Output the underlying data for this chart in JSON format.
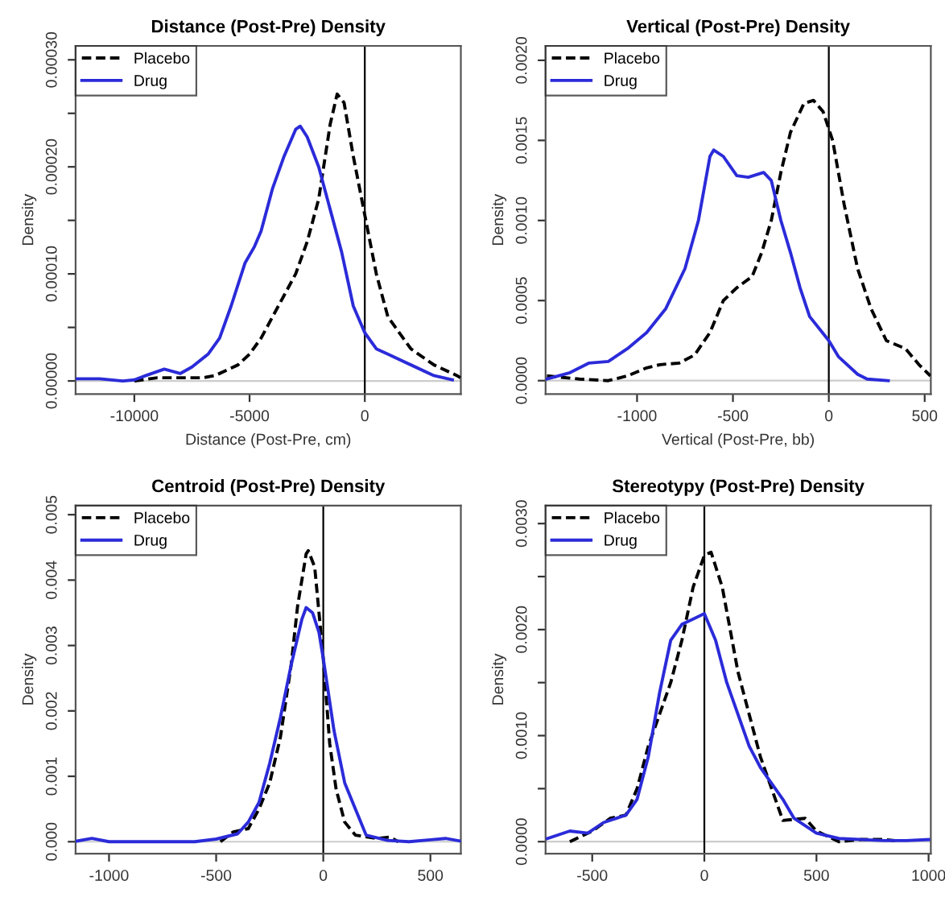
{
  "chart_data": [
    {
      "type": "line",
      "title": "Distance (Post-Pre) Density",
      "xlabel": "Distance (Post-Pre, cm)",
      "ylabel": "Density",
      "legend": "top left",
      "grid": false,
      "xlim": [
        -12548,
        4167
      ],
      "xticks": [
        -10000,
        -5000,
        0
      ],
      "ylim": [
        -1.23e-05,
        0.000313
      ],
      "yticks": [
        {
          "value": 0,
          "label": "0.00000"
        },
        {
          "value": 5e-05,
          "label": null
        },
        {
          "value": 0.0001,
          "label": "0.00010"
        },
        {
          "value": 0.00015,
          "label": null
        },
        {
          "value": 0.0002,
          "label": "0.00020"
        },
        {
          "value": 0.00025,
          "label": null
        },
        {
          "value": 0.0003,
          "label": "0.00030"
        }
      ],
      "ref_lines": [
        {
          "axis": "y",
          "value": 0,
          "color": "#cccccc"
        },
        {
          "axis": "x",
          "value": 0,
          "color": "#000000"
        }
      ],
      "series": [
        {
          "name": "Placebo",
          "color": "#000000",
          "line_style": "dashed",
          "x": [
            -10000,
            -9000,
            -8000,
            -7000,
            -6500,
            -5500,
            -5000,
            -4500,
            -4000,
            -3500,
            -3000,
            -2500,
            -2000,
            -1500,
            -1200,
            -900,
            -500,
            0,
            500,
            1000,
            2000,
            3000,
            4000,
            4150
          ],
          "values": [
            0.0,
            3e-06,
            3e-06,
            3e-06,
            5e-06,
            1.5e-05,
            2.5e-05,
            4e-05,
            6e-05,
            8e-05,
            0.0001,
            0.00013,
            0.00017,
            0.00024,
            0.000268,
            0.00026,
            0.00021,
            0.000155,
            0.0001,
            6e-05,
            3e-05,
            1.5e-05,
            5e-06,
            3e-06
          ]
        },
        {
          "name": "Drug",
          "color": "#2b2bd9",
          "line_style": "solid",
          "x": [
            -12500,
            -11500,
            -10500,
            -10000,
            -9500,
            -8700,
            -8000,
            -7500,
            -6800,
            -6300,
            -5800,
            -5200,
            -4800,
            -4500,
            -4000,
            -3500,
            -3000,
            -2800,
            -2500,
            -2000,
            -1500,
            -1000,
            -500,
            0,
            500,
            1000,
            2000,
            3000,
            3800
          ],
          "values": [
            2e-06,
            2e-06,
            0.0,
            1e-06,
            5e-06,
            1.1e-05,
            7e-06,
            1.3e-05,
            2.5e-05,
            4e-05,
            7e-05,
            0.00011,
            0.000125,
            0.00014,
            0.00018,
            0.00021,
            0.000235,
            0.000238,
            0.000228,
            0.0002,
            0.00016,
            0.00012,
            7e-05,
            4.5e-05,
            3e-05,
            2.5e-05,
            1.5e-05,
            5e-06,
            1e-06
          ]
        }
      ]
    },
    {
      "type": "line",
      "title": "Vertical (Post-Pre) Density",
      "xlabel": "Vertical (Post-Pre, bb)",
      "ylabel": "Density",
      "legend": "top left",
      "grid": false,
      "xlim": [
        -1477,
        532
      ],
      "xticks": [
        -1000,
        -500,
        0,
        500
      ],
      "ylim": [
        -8.4e-05,
        0.00209
      ],
      "yticks": [
        {
          "value": 0,
          "label": "0.0000"
        },
        {
          "value": 0.0005,
          "label": "0.0005"
        },
        {
          "value": 0.001,
          "label": "0.0010"
        },
        {
          "value": 0.0015,
          "label": "0.0015"
        },
        {
          "value": 0.002,
          "label": "0.0020"
        }
      ],
      "ref_lines": [
        {
          "axis": "y",
          "value": 0,
          "color": "#cccccc"
        },
        {
          "axis": "x",
          "value": 0,
          "color": "#000000"
        }
      ],
      "series": [
        {
          "name": "Placebo",
          "color": "#000000",
          "line_style": "dashed",
          "x": [
            -1470,
            -1300,
            -1150,
            -1050,
            -950,
            -880,
            -780,
            -700,
            -620,
            -550,
            -480,
            -400,
            -350,
            -300,
            -250,
            -200,
            -130,
            -80,
            -30,
            20,
            80,
            150,
            220,
            300,
            400,
            470,
            530
          ],
          "values": [
            3e-05,
            1e-05,
            0.0,
            3e-05,
            8e-05,
            0.0001,
            0.00011,
            0.00016,
            0.0003,
            0.0005,
            0.00058,
            0.00065,
            0.0008,
            0.001,
            0.0013,
            0.00155,
            0.00173,
            0.00175,
            0.00168,
            0.0015,
            0.0011,
            0.0007,
            0.00045,
            0.00025,
            0.0002,
            0.0001,
            3e-05
          ]
        },
        {
          "name": "Drug",
          "color": "#2b2bd9",
          "line_style": "solid",
          "x": [
            -1470,
            -1350,
            -1250,
            -1150,
            -1050,
            -950,
            -850,
            -750,
            -680,
            -620,
            -600,
            -550,
            -480,
            -420,
            -340,
            -300,
            -250,
            -200,
            -150,
            -100,
            0,
            50,
            150,
            200,
            310
          ],
          "values": [
            1e-05,
            5e-05,
            0.00011,
            0.00012,
            0.0002,
            0.0003,
            0.00045,
            0.0007,
            0.001,
            0.0014,
            0.00144,
            0.0014,
            0.00128,
            0.00127,
            0.0013,
            0.00125,
            0.001,
            0.0008,
            0.00058,
            0.0004,
            0.00025,
            0.00015,
            4e-05,
            1e-05,
            0.0
          ]
        }
      ]
    },
    {
      "type": "line",
      "title": "Centroid (Post-Pre) Density",
      "ylabel": "Density",
      "legend": "top left",
      "grid": false,
      "xlim": [
        -1156,
        642
      ],
      "xticks": [
        -1000,
        -500,
        0,
        500
      ],
      "ylim": [
        -0.000184,
        0.00514
      ],
      "yticks": [
        {
          "value": 0,
          "label": "0.000"
        },
        {
          "value": 0.001,
          "label": "0.001"
        },
        {
          "value": 0.002,
          "label": "0.002"
        },
        {
          "value": 0.003,
          "label": "0.003"
        },
        {
          "value": 0.004,
          "label": "0.004"
        },
        {
          "value": 0.005,
          "label": "0.005"
        }
      ],
      "ref_lines": [
        {
          "axis": "y",
          "value": 0,
          "color": "#cccccc"
        },
        {
          "axis": "x",
          "value": 0,
          "color": "#000000"
        }
      ],
      "series": [
        {
          "name": "Placebo",
          "color": "#000000",
          "line_style": "dashed",
          "x": [
            -480,
            -420,
            -350,
            -300,
            -250,
            -200,
            -150,
            -120,
            -80,
            -70,
            -40,
            0,
            30,
            60,
            100,
            150,
            250,
            310,
            350
          ],
          "values": [
            0.0,
            0.00015,
            0.0002,
            0.0005,
            0.0009,
            0.0016,
            0.0027,
            0.0036,
            0.0044,
            0.00445,
            0.0042,
            0.0028,
            0.0015,
            0.0008,
            0.0003,
            0.0001,
            5e-05,
            7e-05,
            0.0
          ]
        },
        {
          "name": "Drug",
          "color": "#2b2bd9",
          "line_style": "solid",
          "x": [
            -1150,
            -1080,
            -1000,
            -600,
            -500,
            -400,
            -350,
            -300,
            -250,
            -200,
            -150,
            -100,
            -80,
            -50,
            -20,
            0,
            50,
            100,
            150,
            200,
            300,
            400,
            500,
            570,
            640
          ],
          "values": [
            1e-05,
            5e-05,
            0.0,
            0.0,
            4e-05,
            0.00012,
            0.0003,
            0.0006,
            0.0012,
            0.0019,
            0.0027,
            0.0034,
            0.00358,
            0.0035,
            0.0032,
            0.0028,
            0.0017,
            0.0009,
            0.0005,
            0.0001,
            2e-05,
            0.0,
            3e-05,
            5e-05,
            1e-05
          ]
        }
      ]
    },
    {
      "type": "line",
      "title": "Stereotypy (Post-Pre) Density",
      "ylabel": "Density",
      "legend": "top left",
      "grid": false,
      "xlim": [
        -708,
        1010
      ],
      "xticks": [
        -500,
        0,
        500,
        1000
      ],
      "ylim": [
        -0.000114,
        0.00317
      ],
      "yticks": [
        {
          "value": 0,
          "label": "0.0000"
        },
        {
          "value": 0.0005,
          "label": null
        },
        {
          "value": 0.001,
          "label": "0.0010"
        },
        {
          "value": 0.0015,
          "label": null
        },
        {
          "value": 0.002,
          "label": "0.0020"
        },
        {
          "value": 0.0025,
          "label": null
        },
        {
          "value": 0.003,
          "label": "0.0030"
        }
      ],
      "ref_lines": [
        {
          "axis": "y",
          "value": 0,
          "color": "#cccccc"
        },
        {
          "axis": "x",
          "value": 0,
          "color": "#000000"
        }
      ],
      "series": [
        {
          "name": "Placebo",
          "color": "#000000",
          "line_style": "dashed",
          "x": [
            -600,
            -500,
            -420,
            -350,
            -300,
            -250,
            -200,
            -150,
            -100,
            -50,
            0,
            30,
            80,
            150,
            200,
            250,
            300,
            350,
            450,
            500,
            600,
            700,
            800,
            850
          ],
          "values": [
            0.0,
            0.0001,
            0.00022,
            0.00025,
            0.0005,
            0.0009,
            0.0012,
            0.0015,
            0.0019,
            0.0024,
            0.0027,
            0.00273,
            0.0024,
            0.0016,
            0.0012,
            0.0008,
            0.0005,
            0.0002,
            0.00022,
            0.0001,
            0.0,
            2e-05,
            2e-05,
            1e-05
          ]
        },
        {
          "name": "Drug",
          "color": "#2b2bd9",
          "line_style": "solid",
          "x": [
            -700,
            -600,
            -520,
            -450,
            -350,
            -300,
            -250,
            -200,
            -150,
            -100,
            -50,
            0,
            50,
            100,
            150,
            200,
            250,
            300,
            350,
            400,
            500,
            600,
            800,
            900,
            1000
          ],
          "values": [
            3e-05,
            0.0001,
            8e-05,
            0.00018,
            0.00025,
            0.0004,
            0.0008,
            0.0014,
            0.0019,
            0.00205,
            0.0021,
            0.00215,
            0.0019,
            0.0015,
            0.0012,
            0.0009,
            0.0007,
            0.00055,
            0.0004,
            0.00022,
            8e-05,
            3e-05,
            1e-05,
            1e-05,
            2e-05
          ]
        }
      ]
    }
  ]
}
